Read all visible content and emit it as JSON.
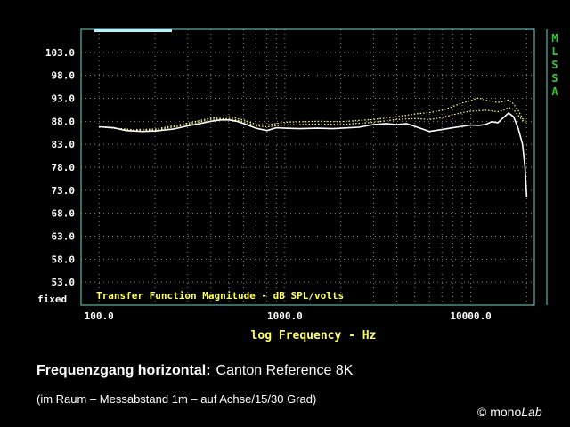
{
  "caption": {
    "title_bold": "Frequenzgang horizontal:",
    "title_normal": "Canton Reference 8K",
    "subtitle": "(im Raum – Messabstand 1m – auf Achse/15/30 Grad)",
    "copyright": "©",
    "logo_plain": "mono",
    "logo_italic": "Lab"
  },
  "chart_data": {
    "type": "line",
    "plot_title": "Transfer Function Magnitude - dB SPL/volts",
    "xlabel": "log Frequency - Hz",
    "x_scale": "log",
    "xlim": [
      80,
      22000
    ],
    "ylim": [
      48,
      108
    ],
    "x_ticks": [
      100,
      1000,
      10000
    ],
    "x_tick_labels": [
      "100.0",
      "1000.0",
      "10000.0"
    ],
    "y_ticks": [
      103,
      98,
      93,
      88,
      83,
      78,
      73,
      68,
      63,
      58,
      53
    ],
    "y_tick_labels": [
      "103.0",
      "98.0",
      "93.0",
      "88.0",
      "83.0",
      "78.0",
      "73.0",
      "68.0",
      "63.0",
      "58.0",
      "53.0"
    ],
    "y_bottom_label": "fixed",
    "side_label": [
      "M",
      "L",
      "S",
      "S",
      "A"
    ],
    "grid": "dotted",
    "colors": {
      "frame": "#6fd3cf",
      "axis_text": "#ffffff",
      "label_text": "#ffff66",
      "side_text": "#33cc33",
      "grid": "#888888",
      "indicator": "#b8f0ff"
    },
    "series": [
      {
        "style": "solid",
        "color": "#ffffff",
        "points": [
          [
            100,
            86.8
          ],
          [
            120,
            86.6
          ],
          [
            140,
            86.0
          ],
          [
            170,
            85.8
          ],
          [
            200,
            85.9
          ],
          [
            250,
            86.3
          ],
          [
            300,
            87.0
          ],
          [
            350,
            87.5
          ],
          [
            400,
            88.0
          ],
          [
            450,
            88.3
          ],
          [
            500,
            88.3
          ],
          [
            550,
            88.0
          ],
          [
            600,
            87.5
          ],
          [
            700,
            86.5
          ],
          [
            800,
            86.0
          ],
          [
            900,
            86.6
          ],
          [
            1000,
            86.5
          ],
          [
            1200,
            86.4
          ],
          [
            1500,
            86.5
          ],
          [
            1800,
            86.4
          ],
          [
            2000,
            86.5
          ],
          [
            2500,
            86.7
          ],
          [
            3000,
            87.3
          ],
          [
            3500,
            87.5
          ],
          [
            4000,
            87.3
          ],
          [
            4500,
            87.5
          ],
          [
            5000,
            86.9
          ],
          [
            6000,
            85.8
          ],
          [
            7000,
            86.2
          ],
          [
            8000,
            86.6
          ],
          [
            9000,
            86.9
          ],
          [
            10000,
            87.2
          ],
          [
            11000,
            87.1
          ],
          [
            12000,
            87.3
          ],
          [
            13000,
            87.9
          ],
          [
            14000,
            87.7
          ],
          [
            15000,
            88.8
          ],
          [
            16000,
            89.8
          ],
          [
            17000,
            89.0
          ],
          [
            18000,
            86.5
          ],
          [
            19000,
            83.0
          ],
          [
            19600,
            78.0
          ],
          [
            20000,
            71.5
          ]
        ]
      },
      {
        "style": "dotted",
        "color": "#ffff88",
        "points": [
          [
            100,
            86.8
          ],
          [
            150,
            86.1
          ],
          [
            200,
            86.1
          ],
          [
            300,
            87.3
          ],
          [
            400,
            88.4
          ],
          [
            500,
            88.6
          ],
          [
            600,
            87.9
          ],
          [
            700,
            87.0
          ],
          [
            800,
            86.8
          ],
          [
            1000,
            87.2
          ],
          [
            1500,
            87.4
          ],
          [
            2000,
            87.3
          ],
          [
            3000,
            87.8
          ],
          [
            4000,
            88.4
          ],
          [
            5000,
            88.6
          ],
          [
            6000,
            88.4
          ],
          [
            7000,
            88.8
          ],
          [
            8000,
            89.4
          ],
          [
            9000,
            89.9
          ],
          [
            10000,
            90.2
          ],
          [
            12000,
            90.4
          ],
          [
            14000,
            90.1
          ],
          [
            15000,
            90.4
          ],
          [
            16000,
            91.0
          ],
          [
            17000,
            90.6
          ],
          [
            18000,
            89.3
          ],
          [
            19000,
            88.2
          ],
          [
            20000,
            87.5
          ]
        ]
      },
      {
        "style": "dotted",
        "color": "#ffff88",
        "points": [
          [
            100,
            86.8
          ],
          [
            150,
            86.2
          ],
          [
            200,
            86.3
          ],
          [
            300,
            87.6
          ],
          [
            400,
            88.7
          ],
          [
            500,
            89.0
          ],
          [
            600,
            88.3
          ],
          [
            700,
            87.3
          ],
          [
            800,
            87.2
          ],
          [
            1000,
            87.8
          ],
          [
            1500,
            88.0
          ],
          [
            2000,
            87.9
          ],
          [
            3000,
            88.4
          ],
          [
            4000,
            89.0
          ],
          [
            5000,
            89.6
          ],
          [
            6000,
            89.9
          ],
          [
            7000,
            90.4
          ],
          [
            8000,
            91.2
          ],
          [
            9000,
            92.0
          ],
          [
            10000,
            92.5
          ],
          [
            11000,
            93.1
          ],
          [
            12000,
            92.6
          ],
          [
            14000,
            92.1
          ],
          [
            15000,
            92.3
          ],
          [
            16000,
            92.7
          ],
          [
            17000,
            91.8
          ],
          [
            18000,
            90.4
          ],
          [
            19000,
            88.6
          ],
          [
            20000,
            87.8
          ]
        ]
      }
    ]
  }
}
